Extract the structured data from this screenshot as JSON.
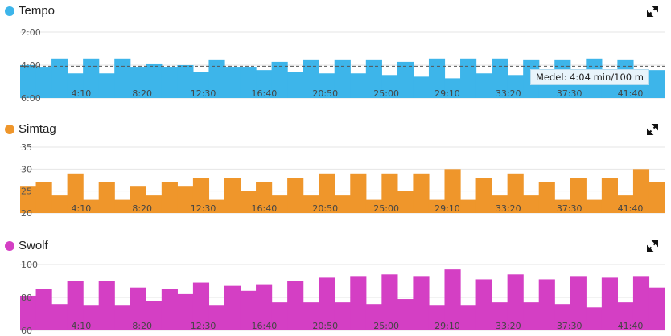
{
  "panels": [
    {
      "title": "Tempo",
      "color": "#3db5ea",
      "icon": "expand-icon"
    },
    {
      "title": "Simtag",
      "color": "#ef962b",
      "icon": "expand-icon"
    },
    {
      "title": "Swolf",
      "color": "#d43fc4",
      "icon": "expand-icon"
    }
  ],
  "tooltip": {
    "label": "Medel: 4:04 min/100 m"
  },
  "chart_data": [
    {
      "type": "bar",
      "title": "Tempo",
      "color": "#3db5ea",
      "y_inverted": true,
      "ylim": [
        2,
        6
      ],
      "yticks": [
        {
          "v": 2,
          "label": "2:00"
        },
        {
          "v": 4,
          "label": "4:00"
        },
        {
          "v": 6,
          "label": "6:00"
        }
      ],
      "xlim": [
        0,
        2640
      ],
      "xticks": [
        {
          "v": 250,
          "label": "4:10"
        },
        {
          "v": 500,
          "label": "8:20"
        },
        {
          "v": 750,
          "label": "12:30"
        },
        {
          "v": 1000,
          "label": "16:40"
        },
        {
          "v": 1250,
          "label": "20:50"
        },
        {
          "v": 1500,
          "label": "25:00"
        },
        {
          "v": 1750,
          "label": "29:10"
        },
        {
          "v": 2000,
          "label": "33:20"
        },
        {
          "v": 2250,
          "label": "37:30"
        },
        {
          "v": 2500,
          "label": "41:40"
        }
      ],
      "average": 4.07,
      "values": [
        4.0,
        4.1,
        3.6,
        4.5,
        3.6,
        4.5,
        3.6,
        4.1,
        3.9,
        4.1,
        4.0,
        4.4,
        3.7,
        4.1,
        4.1,
        4.3,
        3.8,
        4.4,
        3.7,
        4.5,
        3.7,
        4.5,
        3.7,
        4.6,
        3.8,
        4.7,
        3.6,
        4.8,
        3.6,
        4.5,
        3.6,
        4.6,
        3.7,
        4.4,
        3.7,
        4.4,
        3.6,
        4.6,
        3.7,
        4.4,
        4.3
      ]
    },
    {
      "type": "bar",
      "title": "Simtag",
      "color": "#ef962b",
      "ylim": [
        20,
        35
      ],
      "yticks": [
        {
          "v": 20,
          "label": "20"
        },
        {
          "v": 25,
          "label": "25"
        },
        {
          "v": 30,
          "label": "30"
        },
        {
          "v": 35,
          "label": "35"
        }
      ],
      "xlim": [
        0,
        2640
      ],
      "xticks": [
        {
          "v": 250,
          "label": "4:10"
        },
        {
          "v": 500,
          "label": "8:20"
        },
        {
          "v": 750,
          "label": "12:30"
        },
        {
          "v": 1000,
          "label": "16:40"
        },
        {
          "v": 1250,
          "label": "20:50"
        },
        {
          "v": 1500,
          "label": "25:00"
        },
        {
          "v": 1750,
          "label": "29:10"
        },
        {
          "v": 2000,
          "label": "33:20"
        },
        {
          "v": 2250,
          "label": "37:30"
        },
        {
          "v": 2500,
          "label": "41:40"
        }
      ],
      "values": [
        26,
        27,
        24,
        29,
        23,
        27,
        23,
        26,
        24,
        27,
        26,
        28,
        23,
        28,
        25,
        27,
        24,
        28,
        24,
        29,
        24,
        29,
        23,
        29,
        25,
        29,
        23,
        30,
        23,
        28,
        24,
        29,
        24,
        27,
        23,
        28,
        23,
        28,
        24,
        30,
        27
      ]
    },
    {
      "type": "bar",
      "title": "Swolf",
      "color": "#d43fc4",
      "ylim": [
        60,
        100
      ],
      "yticks": [
        {
          "v": 60,
          "label": "60"
        },
        {
          "v": 80,
          "label": "80"
        },
        {
          "v": 100,
          "label": "100"
        }
      ],
      "xlim": [
        0,
        2640
      ],
      "xticks": [
        {
          "v": 250,
          "label": "4:10"
        },
        {
          "v": 500,
          "label": "8:20"
        },
        {
          "v": 750,
          "label": "12:30"
        },
        {
          "v": 1000,
          "label": "16:40"
        },
        {
          "v": 1250,
          "label": "20:50"
        },
        {
          "v": 1500,
          "label": "25:00"
        },
        {
          "v": 1750,
          "label": "29:10"
        },
        {
          "v": 2000,
          "label": "33:20"
        },
        {
          "v": 2250,
          "label": "37:30"
        },
        {
          "v": 2500,
          "label": "41:40"
        }
      ],
      "values": [
        81,
        85,
        76,
        90,
        75,
        90,
        75,
        86,
        78,
        85,
        82,
        89,
        75,
        87,
        84,
        88,
        77,
        90,
        77,
        92,
        77,
        93,
        76,
        94,
        79,
        93,
        75,
        97,
        75,
        91,
        77,
        94,
        77,
        91,
        76,
        93,
        74,
        92,
        77,
        93,
        86
      ]
    }
  ]
}
